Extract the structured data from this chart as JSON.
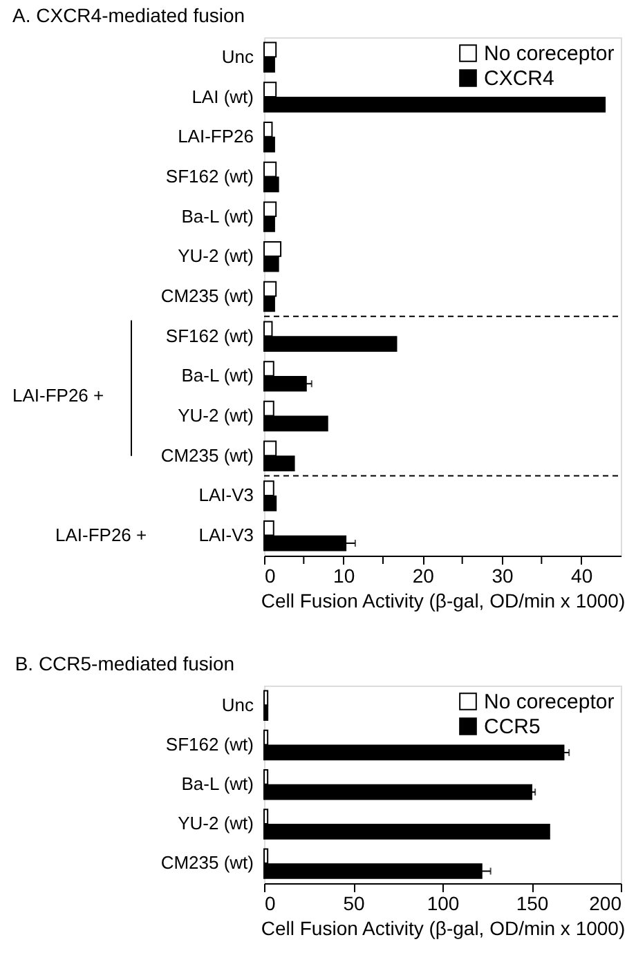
{
  "chart_data": [
    {
      "type": "bar",
      "orientation": "horizontal",
      "title": "A. CXCR4-mediated fusion",
      "xlabel": "Cell Fusion Activity (β-gal, OD/min x 1000)",
      "categories": [
        "Unc",
        "LAI (wt)",
        "LAI-FP26",
        "SF162 (wt)",
        "Ba-L (wt)",
        "YU-2 (wt)",
        "CM235 (wt)",
        "SF162 (wt)",
        "Ba-L (wt)",
        "YU-2 (wt)",
        "CM235 (wt)",
        "LAI-V3",
        "LAI-V3"
      ],
      "series": [
        {
          "name": "No coreceptor",
          "color": "#ffffff",
          "values": [
            1.5,
            1.5,
            1.0,
            1.5,
            1.5,
            2.1,
            1.5,
            1.0,
            1.2,
            1.2,
            1.5,
            1.2,
            1.2
          ]
        },
        {
          "name": "CXCR4",
          "color": "#000000",
          "values": [
            1.3,
            43,
            1.3,
            1.8,
            1.3,
            1.8,
            1.3,
            16.7,
            5.3,
            8.0,
            3.8,
            1.5,
            10.3
          ],
          "errors": [
            null,
            null,
            null,
            null,
            null,
            null,
            null,
            null,
            0.7,
            null,
            null,
            null,
            1.2
          ]
        }
      ],
      "xlim": [
        0,
        45
      ],
      "xticks": [
        0,
        {
          "value": 5,
          "label": null
        },
        10,
        {
          "value": 15,
          "label": null
        },
        20,
        {
          "value": 25,
          "label": null
        },
        30,
        {
          "value": 35,
          "label": null
        },
        40
      ],
      "legend": "top right",
      "annotations": [
        "LAI-FP26 +",
        "LAI-FP26 +"
      ]
    },
    {
      "type": "bar",
      "orientation": "horizontal",
      "title": "B. CCR5-mediated fusion",
      "xlabel": "Cell Fusion Activity (β-gal, OD/min x 1000)",
      "categories": [
        "Unc",
        "SF162 (wt)",
        "Ba-L (wt)",
        "YU-2 (wt)",
        "CM235 (wt)"
      ],
      "series": [
        {
          "name": "No coreceptor",
          "color": "#ffffff",
          "values": [
            2,
            2,
            2,
            2,
            2
          ]
        },
        {
          "name": "CCR5",
          "color": "#000000",
          "values": [
            2,
            168,
            150,
            160,
            122
          ],
          "errors": [
            null,
            3,
            2,
            null,
            5
          ]
        }
      ],
      "xlim": [
        0,
        200
      ],
      "xticks": [
        0,
        50,
        100,
        150,
        200
      ],
      "legend": "top right"
    }
  ]
}
